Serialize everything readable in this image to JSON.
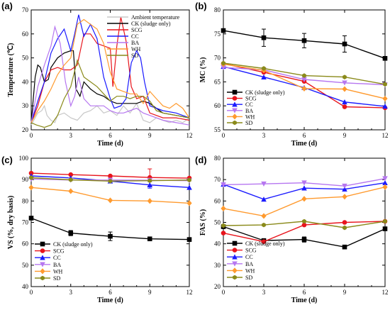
{
  "colors": {
    "ambient": "#c8c8c8",
    "ck": "#000000",
    "scg": "#e8141c",
    "cc": "#1a1aff",
    "ba": "#b676f0",
    "wh": "#ff9a2e",
    "sd": "#8a8a1a"
  },
  "legend_labels": [
    "Ambient temperature",
    "CK (sludge only)",
    "SCG",
    "CC",
    "BA",
    "WH",
    "SD"
  ],
  "chart_data": [
    {
      "panel": "(a)",
      "type": "line",
      "xlabel": "Time (d)",
      "ylabel": "Temperature (℃)",
      "xlim": [
        0,
        12
      ],
      "ylim": [
        20,
        70
      ],
      "xticks": [
        "0",
        "3",
        "6",
        "9",
        "12"
      ],
      "yticks": [
        "20",
        "30",
        "40",
        "50",
        "60",
        "70"
      ],
      "legend_position": "top-right",
      "series": [
        {
          "name": "Ambient temperature",
          "color_key": "ambient",
          "points": [
            [
              0,
              22
            ],
            [
              0.3,
              25
            ],
            [
              0.5,
              27
            ],
            [
              0.8,
              28
            ],
            [
              1.0,
              30
            ],
            [
              1.2,
              26
            ],
            [
              1.5,
              24
            ],
            [
              1.8,
              23
            ],
            [
              2.0,
              26
            ],
            [
              2.5,
              27
            ],
            [
              3.0,
              25
            ],
            [
              3.5,
              24
            ],
            [
              4.0,
              27
            ],
            [
              4.5,
              28
            ],
            [
              5.0,
              30
            ],
            [
              5.5,
              27
            ],
            [
              6.0,
              28
            ],
            [
              6.5,
              26
            ],
            [
              7.0,
              30
            ],
            [
              7.5,
              27
            ],
            [
              8.0,
              31
            ],
            [
              8.5,
              24
            ],
            [
              9.0,
              23
            ],
            [
              9.5,
              25
            ],
            [
              10.0,
              24
            ],
            [
              10.5,
              23
            ],
            [
              11.0,
              24
            ],
            [
              11.5,
              23
            ],
            [
              12.0,
              25
            ]
          ]
        },
        {
          "name": "CK (sludge only)",
          "color_key": "ck",
          "points": [
            [
              0,
              23
            ],
            [
              0.3,
              42
            ],
            [
              0.5,
              47
            ],
            [
              0.7,
              46
            ],
            [
              1.0,
              40
            ],
            [
              1.3,
              41
            ],
            [
              1.5,
              46
            ],
            [
              2.0,
              50
            ],
            [
              2.5,
              52
            ],
            [
              3.0,
              53
            ],
            [
              3.2,
              53
            ],
            [
              3.4,
              37
            ],
            [
              3.7,
              34
            ],
            [
              4.0,
              40
            ],
            [
              4.5,
              37
            ],
            [
              5.0,
              35
            ],
            [
              5.5,
              34
            ],
            [
              6.0,
              32
            ],
            [
              6.5,
              31
            ],
            [
              7.0,
              31
            ],
            [
              7.5,
              31
            ],
            [
              8.0,
              31
            ],
            [
              8.5,
              32
            ],
            [
              9.0,
              31
            ],
            [
              9.5,
              29
            ],
            [
              10.0,
              27
            ],
            [
              11.0,
              26
            ],
            [
              12.0,
              25
            ]
          ]
        },
        {
          "name": "SCG",
          "color_key": "scg",
          "points": [
            [
              0,
              23
            ],
            [
              0.5,
              30
            ],
            [
              1.0,
              40
            ],
            [
              1.5,
              45
            ],
            [
              2.0,
              46
            ],
            [
              2.5,
              45
            ],
            [
              3.0,
              45
            ],
            [
              3.5,
              47
            ],
            [
              4.0,
              60
            ],
            [
              4.5,
              60
            ],
            [
              5.0,
              56
            ],
            [
              5.5,
              55
            ],
            [
              6.0,
              54
            ],
            [
              6.2,
              38
            ],
            [
              6.5,
              55
            ],
            [
              6.8,
              67
            ],
            [
              7.2,
              57
            ],
            [
              7.6,
              38
            ],
            [
              8.0,
              33
            ],
            [
              8.5,
              34
            ],
            [
              9.0,
              27
            ],
            [
              10.0,
              25
            ],
            [
              11.0,
              25
            ],
            [
              12.0,
              24
            ]
          ]
        },
        {
          "name": "CC",
          "color_key": "cc",
          "points": [
            [
              0,
              23
            ],
            [
              0.5,
              32
            ],
            [
              1.0,
              40
            ],
            [
              1.5,
              52
            ],
            [
              2.0,
              58
            ],
            [
              2.5,
              62
            ],
            [
              3.0,
              53
            ],
            [
              3.3,
              60
            ],
            [
              3.6,
              68
            ],
            [
              4.0,
              59
            ],
            [
              4.5,
              64
            ],
            [
              5.0,
              58
            ],
            [
              5.5,
              42
            ],
            [
              6.0,
              33
            ],
            [
              6.3,
              29
            ],
            [
              6.8,
              30
            ],
            [
              7.2,
              33
            ],
            [
              7.6,
              48
            ],
            [
              8.0,
              53
            ],
            [
              8.3,
              50
            ],
            [
              8.6,
              40
            ],
            [
              9.0,
              30
            ],
            [
              10.0,
              28
            ],
            [
              11.0,
              27
            ],
            [
              12.0,
              25
            ]
          ]
        },
        {
          "name": "BA",
          "color_key": "ba",
          "points": [
            [
              0,
              23
            ],
            [
              0.5,
              38
            ],
            [
              1.0,
              47
            ],
            [
              1.5,
              55
            ],
            [
              1.8,
              63
            ],
            [
              2.2,
              56
            ],
            [
              2.6,
              40
            ],
            [
              3.0,
              30
            ],
            [
              3.3,
              34
            ],
            [
              3.6,
              42
            ],
            [
              4.0,
              33
            ],
            [
              4.5,
              30
            ],
            [
              5.0,
              30
            ],
            [
              5.5,
              30
            ],
            [
              6.0,
              28
            ],
            [
              6.5,
              27
            ],
            [
              7.0,
              27
            ],
            [
              7.5,
              28
            ],
            [
              8.0,
              29
            ],
            [
              8.5,
              27
            ],
            [
              9.0,
              26
            ],
            [
              10.0,
              24
            ],
            [
              11.0,
              23
            ],
            [
              12.0,
              22
            ]
          ]
        },
        {
          "name": "WH",
          "color_key": "wh",
          "points": [
            [
              0,
              23
            ],
            [
              0.5,
              28
            ],
            [
              1.0,
              32
            ],
            [
              1.5,
              37
            ],
            [
              2.0,
              43
            ],
            [
              2.5,
              47
            ],
            [
              3.0,
              50
            ],
            [
              3.5,
              64
            ],
            [
              4.0,
              66
            ],
            [
              4.5,
              64
            ],
            [
              5.0,
              62
            ],
            [
              5.5,
              56
            ],
            [
              6.0,
              44
            ],
            [
              6.5,
              37
            ],
            [
              7.0,
              36
            ],
            [
              7.5,
              35
            ],
            [
              8.0,
              35
            ],
            [
              8.5,
              31
            ],
            [
              9.0,
              36
            ],
            [
              9.5,
              33
            ],
            [
              10.0,
              30
            ],
            [
              10.5,
              29
            ],
            [
              11.0,
              31
            ],
            [
              11.5,
              29
            ],
            [
              12.0,
              25
            ]
          ]
        },
        {
          "name": "SD",
          "color_key": "sd",
          "points": [
            [
              0,
              23
            ],
            [
              0.4,
              22
            ],
            [
              1.0,
              21
            ],
            [
              1.5,
              22
            ],
            [
              2.0,
              26
            ],
            [
              2.5,
              33
            ],
            [
              3.0,
              38
            ],
            [
              3.5,
              49
            ],
            [
              4.0,
              42
            ],
            [
              4.5,
              40
            ],
            [
              5.0,
              38
            ],
            [
              5.5,
              35
            ],
            [
              6.0,
              32
            ],
            [
              6.5,
              34
            ],
            [
              7.0,
              34
            ],
            [
              7.5,
              33
            ],
            [
              8.0,
              34
            ],
            [
              8.5,
              34
            ],
            [
              9.0,
              32
            ],
            [
              9.5,
              28
            ],
            [
              10.0,
              27
            ],
            [
              11.0,
              26
            ],
            [
              12.0,
              25
            ]
          ]
        }
      ]
    },
    {
      "panel": "(b)",
      "type": "line",
      "xlabel": "Time (d)",
      "ylabel": "MC (%)",
      "xlim": [
        0,
        12
      ],
      "ylim": [
        55,
        80
      ],
      "xticks": [
        "0",
        "3",
        "6",
        "9",
        "12"
      ],
      "yticks": [
        "55",
        "60",
        "65",
        "70",
        "75",
        "80"
      ],
      "x": [
        0,
        3,
        6,
        9,
        12
      ],
      "legend_position": "bottom-left",
      "series": [
        {
          "name": "CK (sludge only)",
          "color_key": "ck",
          "marker": "square",
          "values": [
            75.7,
            74.2,
            73.6,
            72.9,
            69.9
          ],
          "errors": [
            0,
            1.8,
            1.5,
            1.7,
            0
          ]
        },
        {
          "name": "SCG",
          "color_key": "scg",
          "marker": "circle",
          "values": [
            68.8,
            67.0,
            65.1,
            59.8,
            59.6
          ]
        },
        {
          "name": "CC",
          "color_key": "cc",
          "marker": "triangle-up",
          "values": [
            68.2,
            66.0,
            63.8,
            60.8,
            59.9
          ]
        },
        {
          "name": "BA",
          "color_key": "ba",
          "marker": "triangle-down",
          "values": [
            68.0,
            67.5,
            65.5,
            64.8,
            64.4
          ]
        },
        {
          "name": "WH",
          "color_key": "wh",
          "marker": "diamond",
          "values": [
            68.7,
            67.4,
            63.6,
            63.5,
            61.5
          ]
        },
        {
          "name": "SD",
          "color_key": "sd",
          "marker": "hexagon",
          "values": [
            68.9,
            67.8,
            66.3,
            66.0,
            64.5
          ]
        }
      ]
    },
    {
      "panel": "(c)",
      "type": "line",
      "xlabel": "Time (d)",
      "ylabel": "VS (%, dry basis)",
      "xlim": [
        0,
        12
      ],
      "ylim": [
        40,
        100
      ],
      "xticks": [
        "0",
        "3",
        "6",
        "9",
        "12"
      ],
      "yticks": [
        "40",
        "50",
        "60",
        "70",
        "80",
        "90",
        "100"
      ],
      "x": [
        0,
        3,
        6,
        9,
        12
      ],
      "legend_position": "bottom-left",
      "series": [
        {
          "name": "CK (sludge only)",
          "color_key": "ck",
          "marker": "square",
          "values": [
            72.0,
            65.0,
            63.5,
            62.3,
            62.0
          ],
          "errors": [
            0,
            1.2,
            2.0,
            0,
            0
          ]
        },
        {
          "name": "SCG",
          "color_key": "scg",
          "marker": "circle",
          "values": [
            93.0,
            92.3,
            91.7,
            91.0,
            90.7
          ],
          "errors": [
            0,
            0,
            0,
            4.0,
            0
          ]
        },
        {
          "name": "CC",
          "color_key": "cc",
          "marker": "triangle-up",
          "values": [
            91.7,
            90.8,
            89.3,
            87.5,
            86.3
          ],
          "errors": [
            0,
            0,
            0,
            1.5,
            0
          ]
        },
        {
          "name": "BA",
          "color_key": "ba",
          "marker": "triangle-down",
          "values": [
            90.3,
            89.8,
            89.8,
            89.7,
            89.5
          ]
        },
        {
          "name": "WH",
          "color_key": "wh",
          "marker": "diamond",
          "values": [
            86.3,
            84.6,
            80.3,
            80.0,
            79.0
          ]
        },
        {
          "name": "SD",
          "color_key": "sd",
          "marker": "hexagon",
          "values": [
            90.9,
            89.9,
            89.3,
            89.5,
            89.8
          ]
        }
      ]
    },
    {
      "panel": "(d)",
      "type": "line",
      "xlabel": "Time (d)",
      "ylabel": "FAS (%)",
      "xlim": [
        0,
        12
      ],
      "ylim": [
        20,
        80
      ],
      "xticks": [
        "0",
        "3",
        "6",
        "9",
        "12"
      ],
      "yticks": [
        "20",
        "30",
        "40",
        "50",
        "60",
        "70",
        "80"
      ],
      "x": [
        0,
        3,
        6,
        9,
        12
      ],
      "legend_position": "bottom-left",
      "series": [
        {
          "name": "CK (sludge only)",
          "color_key": "ck",
          "marker": "square",
          "values": [
            48.0,
            41.5,
            42.0,
            38.5,
            47.0
          ],
          "errors": [
            0,
            0,
            1.2,
            0,
            0
          ]
        },
        {
          "name": "SCG",
          "color_key": "scg",
          "marker": "circle",
          "values": [
            45.0,
            41.0,
            48.8,
            50.0,
            50.5
          ]
        },
        {
          "name": "CC",
          "color_key": "cc",
          "marker": "triangle-up",
          "values": [
            67.8,
            60.8,
            66.0,
            65.5,
            68.5
          ]
        },
        {
          "name": "BA",
          "color_key": "ba",
          "marker": "triangle-down",
          "values": [
            67.6,
            68.0,
            68.5,
            67.0,
            70.5
          ]
        },
        {
          "name": "WH",
          "color_key": "wh",
          "marker": "diamond",
          "values": [
            56.5,
            53.0,
            61.0,
            62.0,
            66.5
          ]
        },
        {
          "name": "SD",
          "color_key": "sd",
          "marker": "hexagon",
          "values": [
            48.5,
            48.8,
            50.5,
            47.5,
            50.5
          ]
        }
      ]
    }
  ]
}
